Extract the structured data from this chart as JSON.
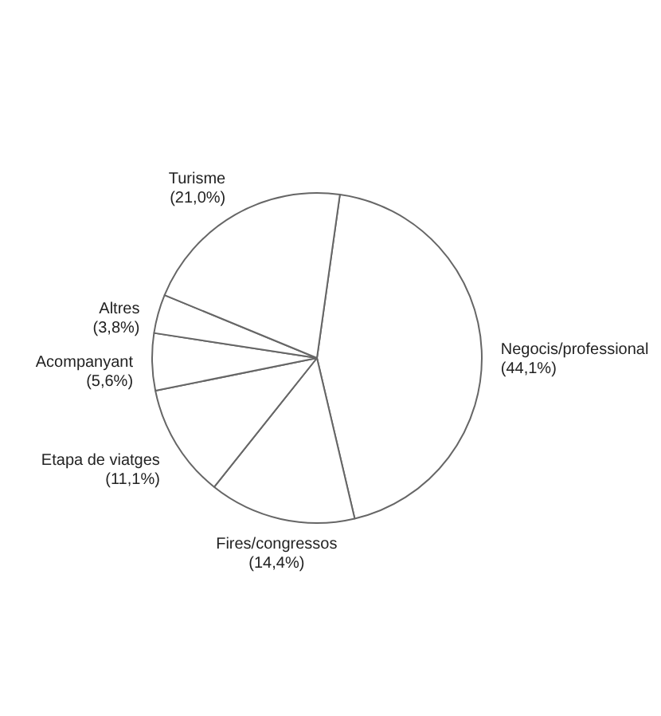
{
  "chart_data": {
    "type": "pie",
    "categories": [
      "Negocis/professional",
      "Fires/congressos",
      "Etapa de viatges",
      "Acompanyant",
      "Altres",
      "Turisme"
    ],
    "values": [
      44.1,
      14.4,
      11.1,
      5.6,
      3.8,
      21.0
    ],
    "colors": [
      "#ffffff",
      "#ffffff",
      "#ffffff",
      "#ffffff",
      "#ffffff",
      "#ffffff"
    ],
    "value_labels": [
      "(44,1%)",
      "(14,4%)",
      "(11,1%)",
      "(5,6%)",
      "(3,8%)",
      "(21,0%)"
    ],
    "legend": false
  }
}
